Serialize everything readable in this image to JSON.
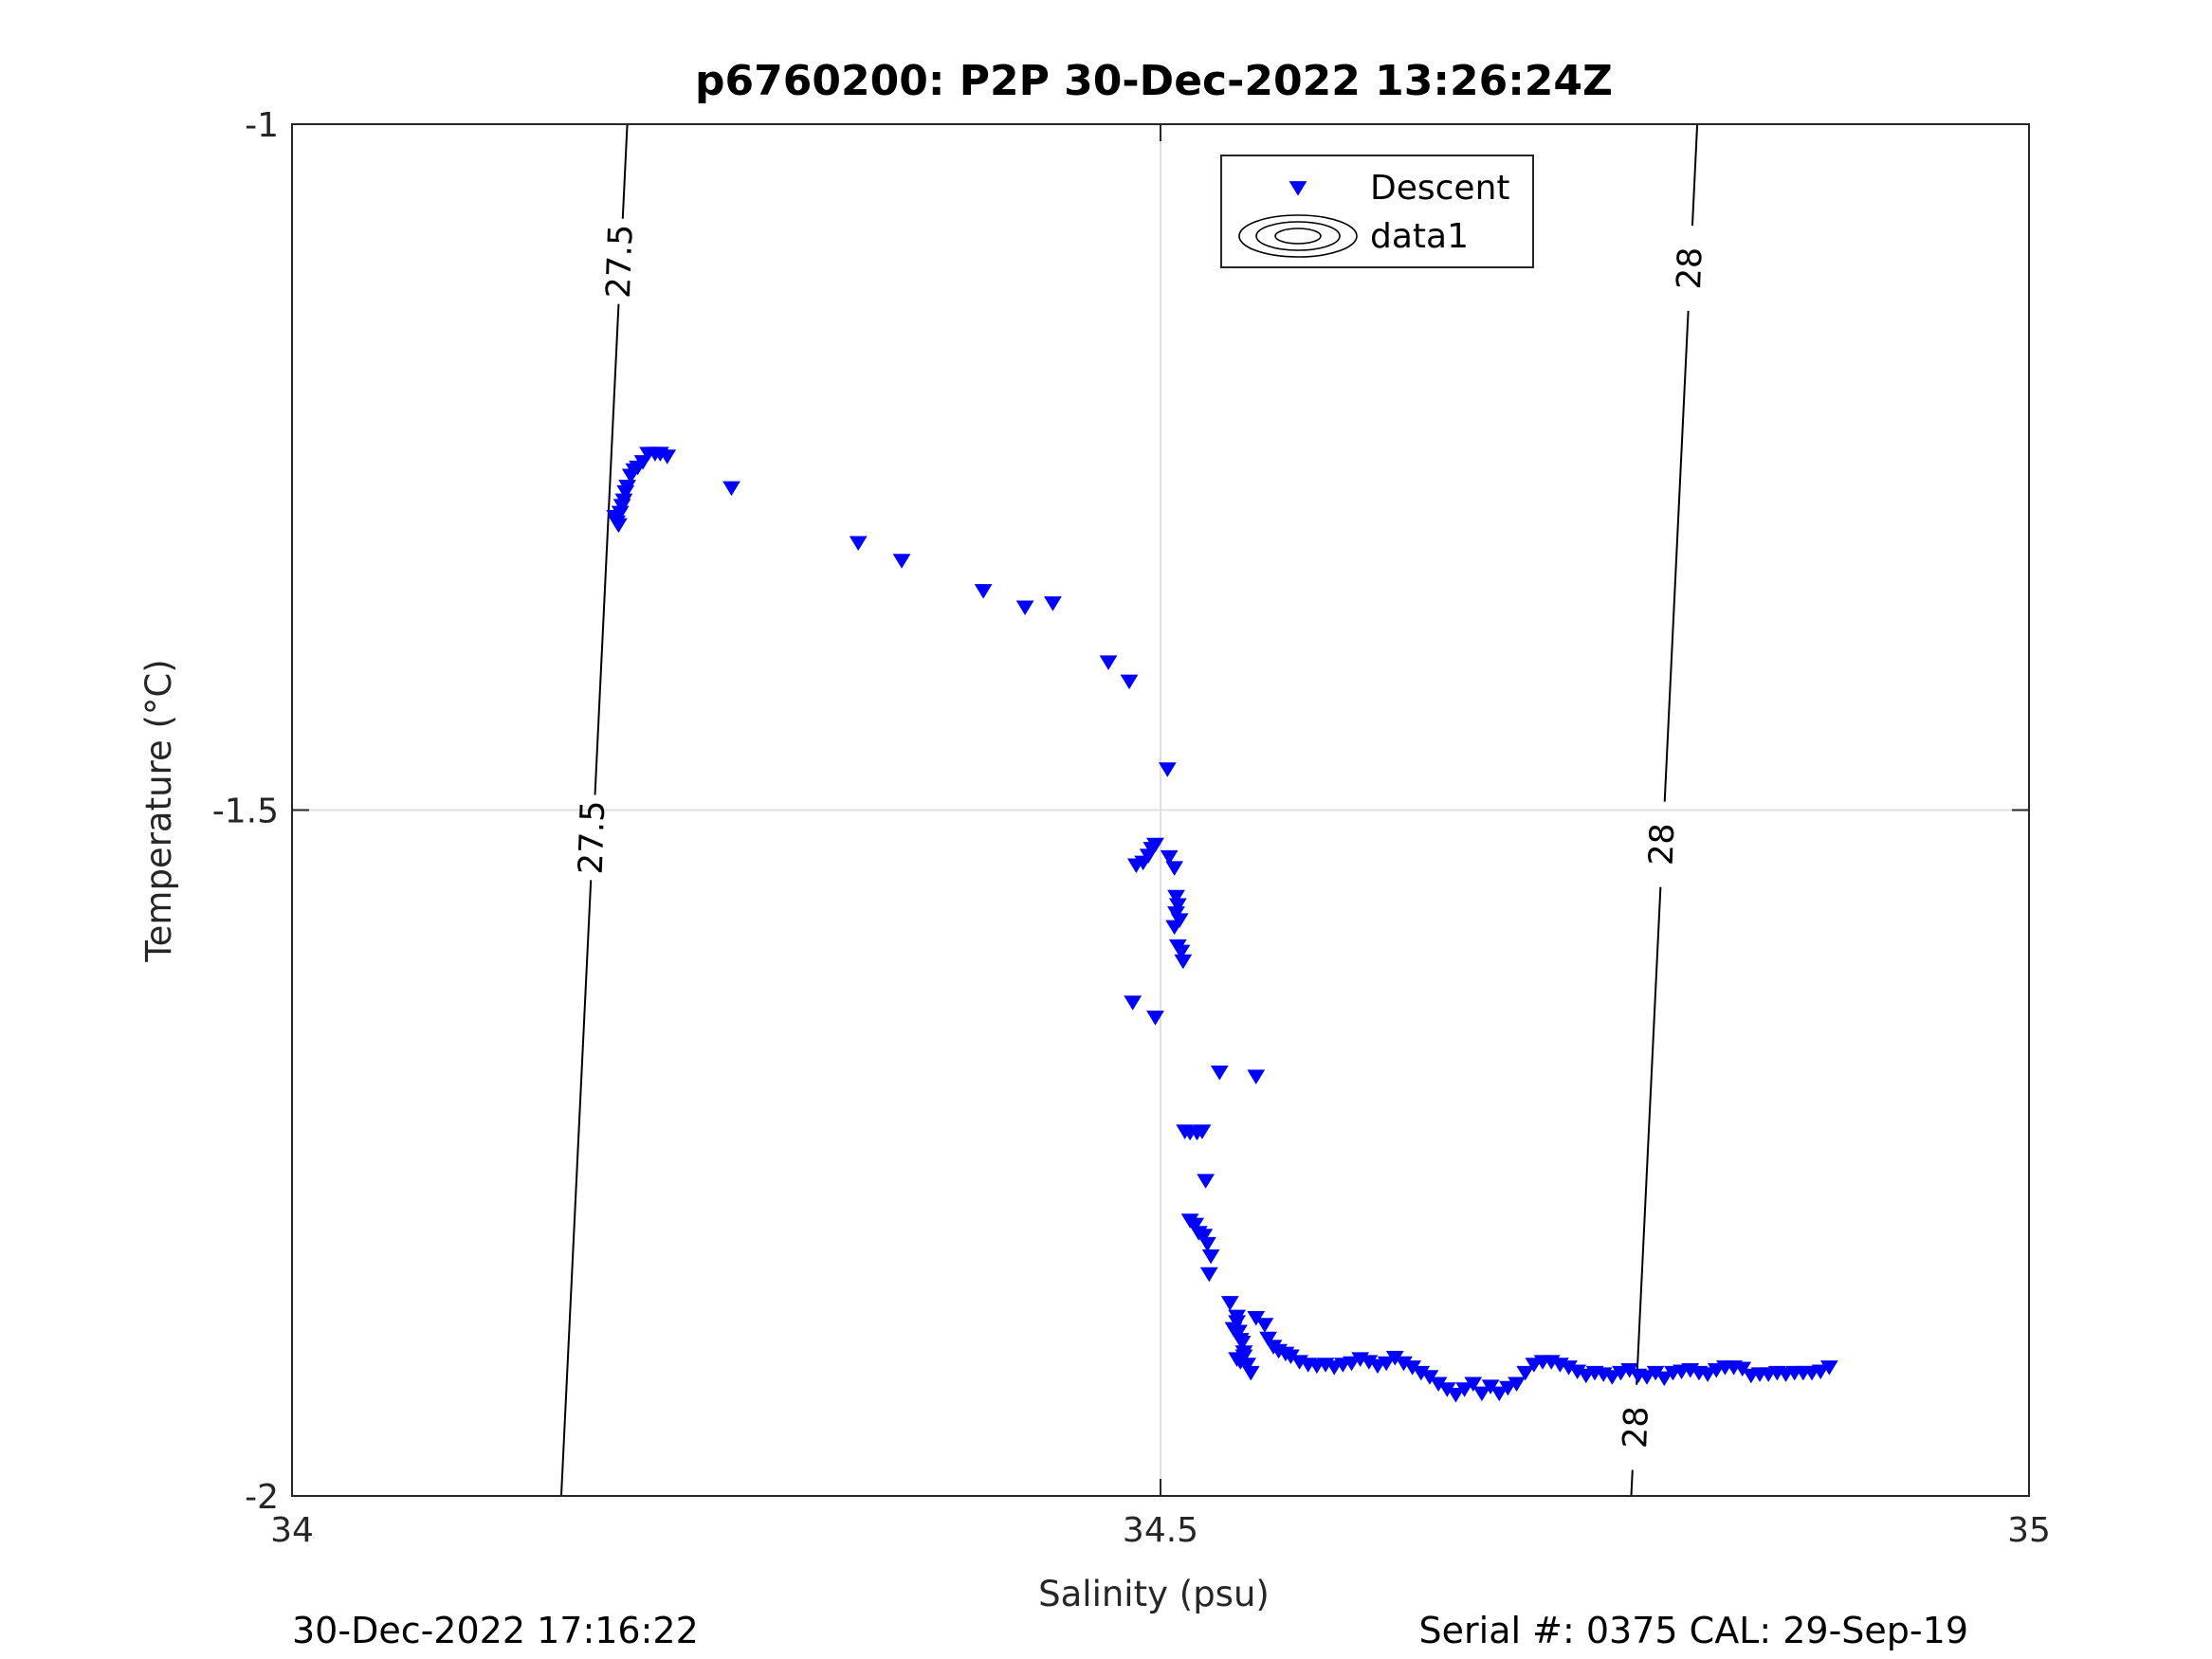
{
  "chart_data": {
    "type": "scatter",
    "title": "p6760200: P2P 30-Dec-2022 13:26:24Z",
    "xlabel": "Salinity (psu)",
    "ylabel": "Temperature (°C)",
    "xlim": [
      34,
      35
    ],
    "ylim": [
      -2,
      -1
    ],
    "xticks": [
      34,
      34.5,
      35
    ],
    "xtick_labels": [
      "34",
      "34.5",
      "35"
    ],
    "yticks": [
      -2,
      -1.5,
      -1
    ],
    "ytick_labels": [
      "-2",
      "-1.5",
      "-1"
    ],
    "grid": true,
    "legend_position": "top-center",
    "legend": [
      "Descent",
      "data1"
    ],
    "marker_color": "#0000ff",
    "series": [
      {
        "name": "Descent",
        "marker": "triangle-down",
        "color": "#0000ff",
        "x": [
          34.186,
          34.187,
          34.188,
          34.189,
          34.19,
          34.191,
          34.192,
          34.193,
          34.195,
          34.197,
          34.199,
          34.202,
          34.205,
          34.209,
          34.212,
          34.216,
          34.253,
          34.326,
          34.351,
          34.398,
          34.422,
          34.438,
          34.47,
          34.482,
          34.504,
          34.497,
          34.495,
          34.493,
          34.49,
          34.486,
          34.505,
          34.508,
          34.509,
          34.51,
          34.509,
          34.511,
          34.508,
          34.51,
          34.512,
          34.513,
          34.484,
          34.497,
          34.534,
          34.555,
          34.514,
          34.517,
          34.521,
          34.524,
          34.517,
          34.52,
          34.522,
          34.525,
          34.527,
          34.529,
          34.526,
          34.528,
          34.54,
          34.544,
          34.546,
          34.548,
          34.55,
          34.552,
          34.542,
          34.544,
          34.545,
          34.547,
          34.544,
          34.546,
          34.548,
          34.555,
          34.56,
          34.562,
          34.565,
          34.568,
          34.572,
          34.575,
          34.58,
          34.585,
          34.59,
          34.595,
          34.6,
          34.605,
          34.61,
          34.615,
          34.62,
          34.625,
          34.63,
          34.635,
          34.64,
          34.645,
          34.65,
          34.655,
          34.66,
          34.665,
          34.67,
          34.675,
          34.68,
          34.685,
          34.69,
          34.695,
          34.7,
          34.705,
          34.71,
          34.715,
          34.72,
          34.725,
          34.73,
          34.735,
          34.74,
          34.745,
          34.75,
          34.755,
          34.76,
          34.765,
          34.77,
          34.775,
          34.78,
          34.785,
          34.79,
          34.795,
          34.8,
          34.805,
          34.81,
          34.815,
          34.82,
          34.825,
          34.83,
          34.835,
          34.84,
          34.845,
          34.85,
          34.855,
          34.86,
          34.865,
          34.87,
          34.875,
          34.88,
          34.885
        ],
        "y": [
          -1.286,
          -1.29,
          -1.292,
          -1.283,
          -1.278,
          -1.274,
          -1.268,
          -1.264,
          -1.256,
          -1.252,
          -1.25,
          -1.246,
          -1.24,
          -1.24,
          -1.24,
          -1.242,
          -1.265,
          -1.305,
          -1.318,
          -1.34,
          -1.352,
          -1.349,
          -1.392,
          -1.406,
          -1.47,
          -1.525,
          -1.528,
          -1.533,
          -1.538,
          -1.54,
          -1.534,
          -1.542,
          -1.563,
          -1.569,
          -1.575,
          -1.58,
          -1.585,
          -1.599,
          -1.603,
          -1.61,
          -1.64,
          -1.651,
          -1.691,
          -1.694,
          -1.734,
          -1.735,
          -1.735,
          -1.734,
          -1.799,
          -1.802,
          -1.808,
          -1.81,
          -1.816,
          -1.825,
          -1.77,
          -1.838,
          -1.859,
          -1.873,
          -1.886,
          -1.895,
          -1.904,
          -1.91,
          -1.878,
          -1.869,
          -1.88,
          -1.888,
          -1.9,
          -1.902,
          -1.898,
          -1.87,
          -1.875,
          -1.885,
          -1.891,
          -1.894,
          -1.896,
          -1.898,
          -1.902,
          -1.904,
          -1.905,
          -1.904,
          -1.906,
          -1.904,
          -1.903,
          -1.9,
          -1.902,
          -1.905,
          -1.903,
          -1.899,
          -1.903,
          -1.906,
          -1.91,
          -1.913,
          -1.918,
          -1.922,
          -1.926,
          -1.922,
          -1.918,
          -1.925,
          -1.92,
          -1.925,
          -1.921,
          -1.918,
          -1.91,
          -1.904,
          -1.902,
          -1.902,
          -1.904,
          -1.906,
          -1.909,
          -1.912,
          -1.91,
          -1.911,
          -1.913,
          -1.91,
          -1.908,
          -1.912,
          -1.913,
          -1.91,
          -1.914,
          -1.91,
          -1.909,
          -1.908,
          -1.91,
          -1.911,
          -1.908,
          -1.906,
          -1.906,
          -1.907,
          -1.912,
          -1.911,
          -1.911,
          -1.91,
          -1.911,
          -1.91,
          -1.91,
          -1.91,
          -1.909,
          -1.906
        ]
      }
    ],
    "contours": [
      {
        "level": "27.5",
        "x": [
          34.193,
          34.155
        ],
        "y": [
          -1,
          -2
        ],
        "label_positions": [
          {
            "x": 34.189,
            "y": -1.1
          },
          {
            "x": 34.173,
            "y": -1.52
          }
        ]
      },
      {
        "level": "28",
        "x": [
          34.809,
          34.771
        ],
        "y": [
          -1,
          -2
        ],
        "label_positions": [
          {
            "x": 34.805,
            "y": -1.105
          },
          {
            "x": 34.789,
            "y": -1.525
          },
          {
            "x": 34.774,
            "y": -1.95
          }
        ]
      }
    ]
  },
  "footer": {
    "left": "30-Dec-2022 17:16:22",
    "right": "Serial #: 0375  CAL: 29-Sep-19"
  },
  "colors": {
    "marker": "#0000ff",
    "axes": "#262626",
    "grid": "#dfdfdf"
  }
}
